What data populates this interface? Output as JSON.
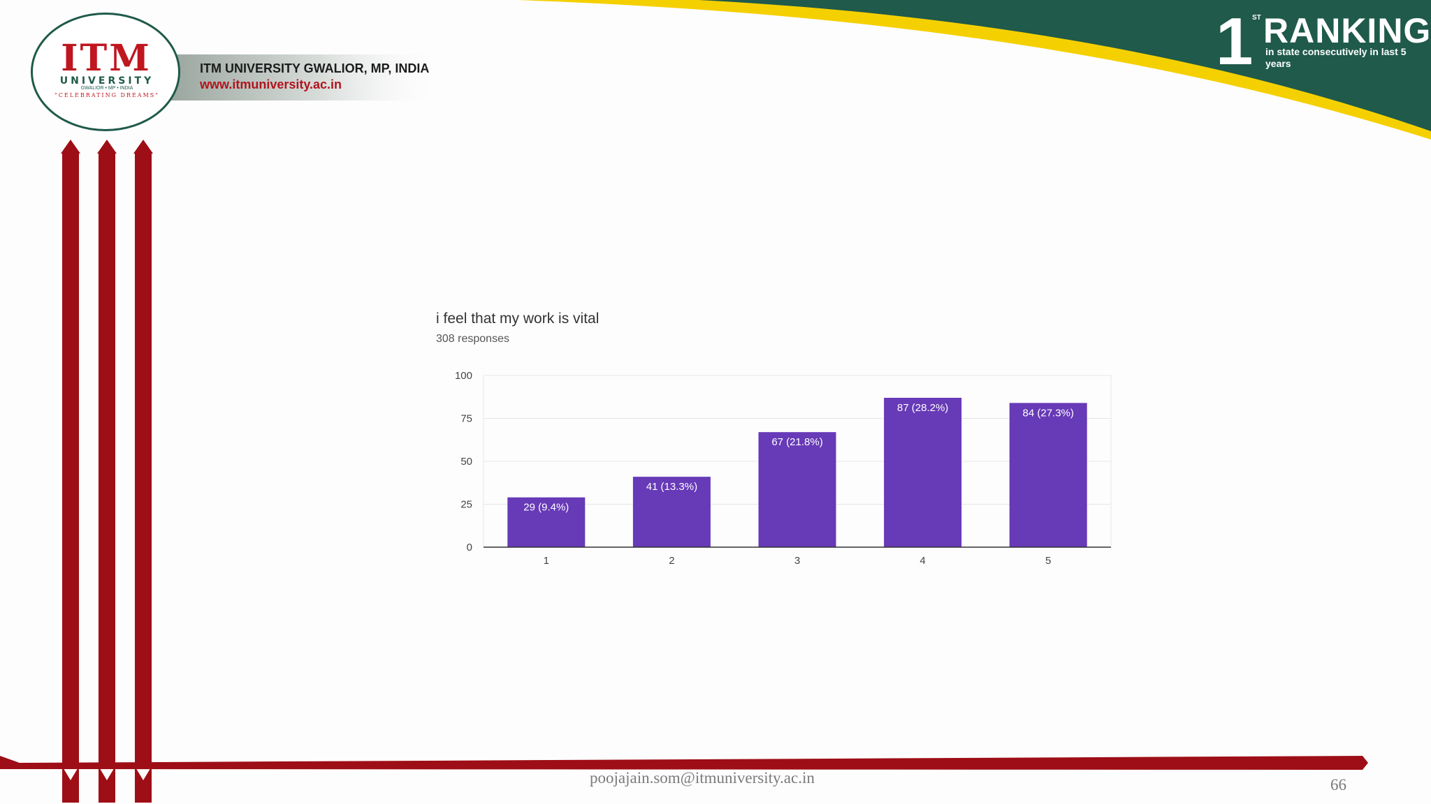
{
  "header": {
    "logo": {
      "text": "ITM",
      "university": "UNIVERSITY",
      "location": "GWALIOR • MP • INDIA",
      "motto": "\"CELEBRATING DREAMS\""
    },
    "university_name": "ITM UNIVERSITY GWALIOR, MP, INDIA",
    "website": "www.itmuniversity.ac.in",
    "ranking": {
      "number": "1",
      "superscript": "ST",
      "title": "RANKING",
      "subtitle": "in state consecutively in last 5 years"
    }
  },
  "colors": {
    "brand_red": "#9e0e16",
    "brand_green": "#1f5a4a",
    "accent_yellow": "#f5d000",
    "bar": "#673ab7"
  },
  "chart_data": {
    "type": "bar",
    "title": "i feel that my work is vital",
    "subtitle": "308 responses",
    "categories": [
      "1",
      "2",
      "3",
      "4",
      "5"
    ],
    "values": [
      29,
      41,
      67,
      87,
      84
    ],
    "data_labels": [
      "29 (9.4%)",
      "41 (13.3%)",
      "67 (21.8%)",
      "87 (28.2%)",
      "84 (27.3%)"
    ],
    "y_ticks": [
      "0",
      "25",
      "50",
      "75",
      "100"
    ],
    "ylim": [
      0,
      100
    ],
    "grid": true,
    "legend": false
  },
  "footer": {
    "email": "poojajain.som@itmuniversity.ac.in",
    "page_number": "66"
  }
}
